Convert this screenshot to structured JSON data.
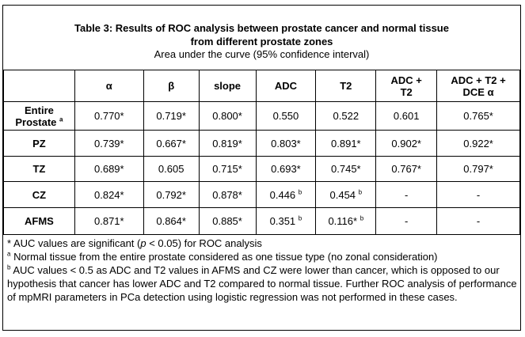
{
  "title": {
    "line1": "Table 3: Results of ROC analysis between prostate cancer and normal tissue",
    "line2": "from different prostate zones",
    "subtitle": "Area under the curve (95% confidence interval)"
  },
  "columns": {
    "c1": "α",
    "c2": "β",
    "c3": "slope",
    "c4": "ADC",
    "c5": "T2",
    "c6a": "ADC +",
    "c6b": "T2",
    "c7a": "ADC + T2 +",
    "c7b": "DCE α"
  },
  "rows": [
    {
      "label1": "Entire",
      "label2": "Prostate",
      "label_sup": "a",
      "v1": "0.770*",
      "v2": "0.719*",
      "v3": "0.800*",
      "v4": "0.550",
      "v5": "0.522",
      "v6": "0.601",
      "v7": "0.765*"
    },
    {
      "label1": "PZ",
      "v1": "0.739*",
      "v2": "0.667*",
      "v3": "0.819*",
      "v4": "0.803*",
      "v5": "0.891*",
      "v6": "0.902*",
      "v7": "0.922*"
    },
    {
      "label1": "TZ",
      "v1": "0.689*",
      "v2": "0.605",
      "v3": "0.715*",
      "v4": "0.693*",
      "v5": "0.745*",
      "v6": "0.767*",
      "v7": "0.797*"
    },
    {
      "label1": "CZ",
      "v1": "0.824*",
      "v2": "0.792*",
      "v3": "0.878*",
      "v4": "0.446",
      "v4_sup": "b",
      "v5": "0.454",
      "v5_sup": "b",
      "v6": "-",
      "v7": "-"
    },
    {
      "label1": "AFMS",
      "v1": "0.871*",
      "v2": "0.864*",
      "v3": "0.885*",
      "v4": "0.351",
      "v4_sup": "b",
      "v5": "0.116*",
      "v5_sup": "b",
      "v6": "-",
      "v7": "-"
    }
  ],
  "notes": {
    "n1_prefix": "* AUC values are significant (",
    "n1_p": "p",
    "n1_suffix": " < 0.05)  for ROC analysis",
    "n2_sup": "a",
    "n2_text": " Normal tissue from the entire prostate considered as one tissue type (no zonal consideration)",
    "n3_sup": "b",
    "n3_text": " AUC values < 0.5 as ADC and T2 values in AFMS and CZ were lower than cancer, which is opposed to our hypothesis that cancer has lower ADC and T2 compared to normal tissue. Further ROC analysis of performance of mpMRI parameters in PCa detection using logistic regression was not performed in these cases."
  }
}
